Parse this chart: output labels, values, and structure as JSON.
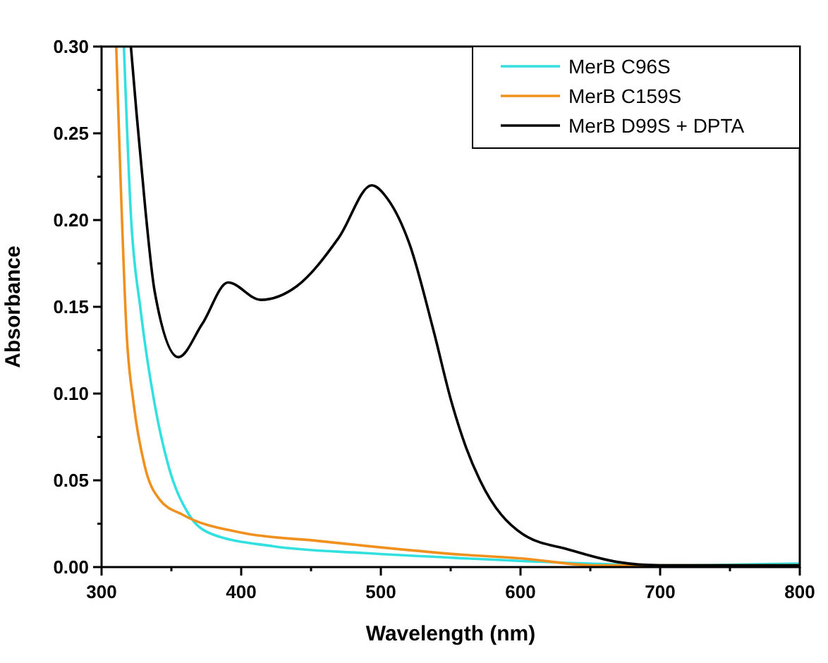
{
  "chart_data": {
    "type": "line",
    "xlabel": "Wavelength (nm)",
    "ylabel": "Absorbance",
    "xlim": [
      300,
      800
    ],
    "ylim": [
      0,
      0.3
    ],
    "xticks": [
      300,
      {
        "value": 350,
        "label": null
      },
      400,
      {
        "value": 450,
        "label": null
      },
      500,
      {
        "value": 550,
        "label": null
      },
      600,
      {
        "value": 650,
        "label": null
      },
      700,
      {
        "value": 750,
        "label": null
      },
      800
    ],
    "yticks": [
      {
        "value": 0,
        "label": "0.00"
      },
      {
        "value": 0.025,
        "label": null
      },
      {
        "value": 0.05,
        "label": "0.05"
      },
      {
        "value": 0.075,
        "label": null
      },
      {
        "value": 0.1,
        "label": "0.10"
      },
      {
        "value": 0.125,
        "label": null
      },
      {
        "value": 0.15,
        "label": "0.15"
      },
      {
        "value": 0.175,
        "label": null
      },
      {
        "value": 0.2,
        "label": "0.20"
      },
      {
        "value": 0.225,
        "label": null
      },
      {
        "value": 0.25,
        "label": "0.25"
      },
      {
        "value": 0.275,
        "label": null
      },
      {
        "value": 0.3,
        "label": "0.30"
      }
    ],
    "legend": "top right",
    "grid": false,
    "marker": "none",
    "line_style": "solid",
    "series": [
      {
        "name": "MerB C96S",
        "color": "#33e0e0",
        "x": [
          316,
          321,
          328,
          338,
          348,
          362,
          379,
          423,
          490,
          561,
          650,
          700,
          800
        ],
        "values": [
          0.3,
          0.203,
          0.148,
          0.094,
          0.058,
          0.031,
          0.019,
          0.012,
          0.008,
          0.005,
          0.002,
          0.001,
          0.002
        ]
      },
      {
        "name": "MerB C159S",
        "color": "#f0901e",
        "x": [
          310.5,
          313,
          318,
          323,
          331,
          341.5,
          358.5,
          399,
          456,
          561,
          601,
          652,
          700,
          800
        ],
        "values": [
          0.3,
          0.238,
          0.134,
          0.094,
          0.058,
          0.039,
          0.03,
          0.02,
          0.015,
          0.007,
          0.005,
          0.001,
          0.001,
          0.001
        ]
      },
      {
        "name": "MerB D99S + DPTA",
        "color": "#000000",
        "x": [
          321,
          325,
          331.5,
          338,
          355,
          372,
          390.6,
          414,
          440,
          470,
          493.5,
          505,
          520.6,
          537.5,
          551,
          561,
          571,
          601.6,
          635,
          669,
          700,
          750,
          800
        ],
        "values": [
          0.3,
          0.262,
          0.205,
          0.159,
          0.121,
          0.14,
          0.164,
          0.154,
          0.162,
          0.19,
          0.22,
          0.212,
          0.186,
          0.137,
          0.094,
          0.069,
          0.05,
          0.019,
          0.01,
          0.003,
          0.001,
          0.001,
          0.001
        ]
      }
    ]
  }
}
